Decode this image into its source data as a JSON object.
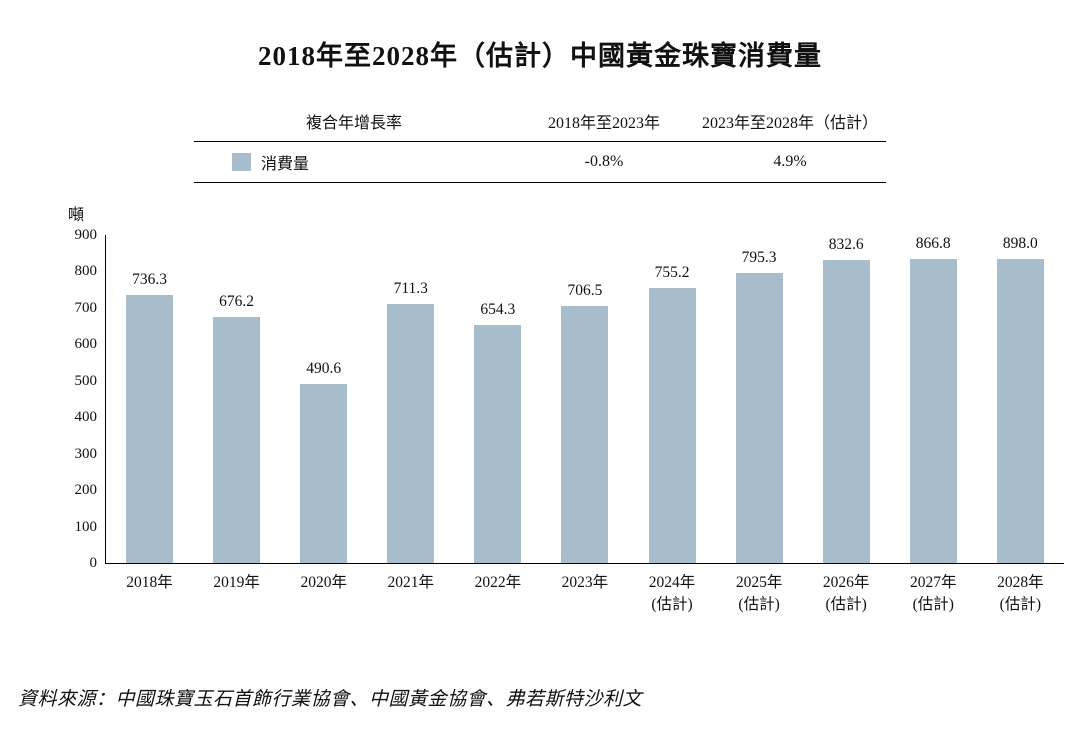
{
  "title": "2018年至2028年（估計）中國黃金珠寶消費量",
  "legend_table": {
    "header": {
      "col1": "複合年增長率",
      "col2": "2018年至2023年",
      "col3": "2023年至2028年（估計）"
    },
    "row": {
      "swatch_color": "#a8bdcc",
      "label": "消費量",
      "value_2018_2023": "-0.8%",
      "value_2023_2028": "4.9%"
    }
  },
  "source": "資料來源：中國珠寶玉石首飾行業協會、中國黃金協會、弗若斯特沙利文",
  "chart_data": {
    "type": "bar",
    "title": "2018年至2028年（估計）中國黃金珠寶消費量",
    "categories": [
      "2018年",
      "2019年",
      "2020年",
      "2021年",
      "2022年",
      "2023年",
      "2024年(估計)",
      "2025年(估計)",
      "2026年(估計)",
      "2027年(估計)",
      "2028年(估計)"
    ],
    "values": [
      736.3,
      676.2,
      490.6,
      711.3,
      654.3,
      706.5,
      755.2,
      795.3,
      832.6,
      866.8,
      898.0
    ],
    "series_name": "消費量",
    "xlabel": "",
    "ylabel": "噸",
    "ylim": [
      0,
      900
    ],
    "ytick_interval": 100,
    "bar_color": "#a8bdcc",
    "grid": false,
    "legend_position": "top-table",
    "annotations": {
      "cagr_2018_2023": "-0.8%",
      "cagr_2023_2028": "4.9%"
    }
  }
}
